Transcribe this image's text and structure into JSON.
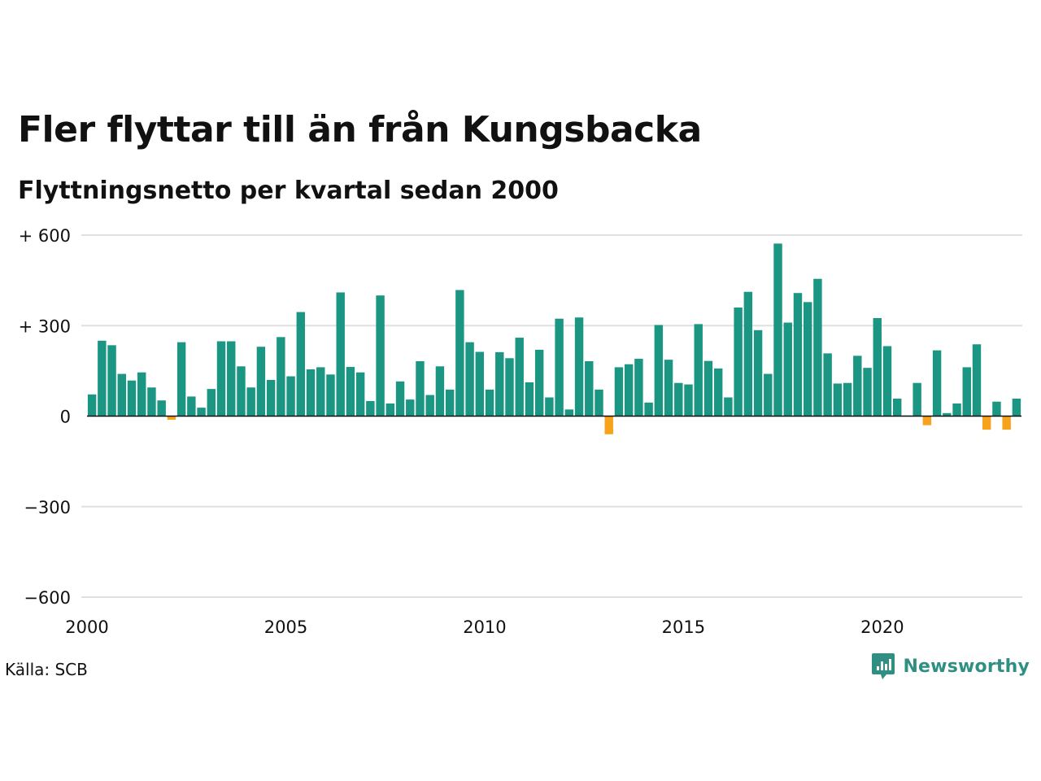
{
  "header": {
    "title": "Fler flyttar till än från Kungsbacka",
    "subtitle": "Flyttningsnetto per kvartal sedan 2000"
  },
  "footer": {
    "source": "Källa: SCB",
    "brand": "Newsworthy"
  },
  "colors": {
    "positive": "#1a9683",
    "negative": "#f7a21b",
    "grid": "#e0e0e0",
    "zero_line": "#111111",
    "brand": "#2f8f83"
  },
  "icons": {
    "brand_logo": "newsworthy-logo-icon"
  },
  "chart_data": {
    "type": "bar",
    "title": "Fler flyttar till än från Kungsbacka",
    "subtitle": "Flyttningsnetto per kvartal sedan 2000",
    "xlabel": "",
    "ylabel": "",
    "ylim": [
      -600,
      600
    ],
    "y_ticks": [
      {
        "value": 600,
        "label": "+ 600"
      },
      {
        "value": 300,
        "label": "+ 300"
      },
      {
        "value": 0,
        "label": "0"
      },
      {
        "value": -300,
        "label": "−300"
      },
      {
        "value": -600,
        "label": "−600"
      }
    ],
    "x_ticks": [
      {
        "value": 2000,
        "label": "2000"
      },
      {
        "value": 2005,
        "label": "2005"
      },
      {
        "value": 2010,
        "label": "2010"
      },
      {
        "value": 2015,
        "label": "2015"
      },
      {
        "value": 2020,
        "label": "2020"
      }
    ],
    "x_range": [
      2000,
      2023.5
    ],
    "grid": true,
    "legend": "none",
    "series": [
      {
        "categories": [
          "2000K1",
          "2000K2",
          "2000K3",
          "2000K4",
          "2001K1",
          "2001K2",
          "2001K3",
          "2001K4",
          "2002K1",
          "2002K2",
          "2002K3",
          "2002K4",
          "2003K1",
          "2003K2",
          "2003K3",
          "2003K4",
          "2004K1",
          "2004K2",
          "2004K3",
          "2004K4",
          "2005K1",
          "2005K2",
          "2005K3",
          "2005K4",
          "2006K1",
          "2006K2",
          "2006K3",
          "2006K4",
          "2007K1",
          "2007K2",
          "2007K3",
          "2007K4",
          "2008K1",
          "2008K2",
          "2008K3",
          "2008K4",
          "2009K1",
          "2009K2",
          "2009K3",
          "2009K4",
          "2010K1",
          "2010K2",
          "2010K3",
          "2010K4",
          "2011K1",
          "2011K2",
          "2011K3",
          "2011K4",
          "2012K1",
          "2012K2",
          "2012K3",
          "2012K4",
          "2013K1",
          "2013K2",
          "2013K3",
          "2013K4",
          "2014K1",
          "2014K2",
          "2014K3",
          "2014K4",
          "2015K1",
          "2015K2",
          "2015K3",
          "2015K4",
          "2016K1",
          "2016K2",
          "2016K3",
          "2016K4",
          "2017K1",
          "2017K2",
          "2017K3",
          "2017K4",
          "2018K1",
          "2018K2",
          "2018K3",
          "2018K4",
          "2019K1",
          "2019K2",
          "2019K3",
          "2019K4",
          "2020K1",
          "2020K2",
          "2020K3",
          "2020K4",
          "2021K1",
          "2021K2",
          "2021K3",
          "2021K4",
          "2022K1",
          "2022K2",
          "2022K3",
          "2022K4",
          "2023K1",
          "2023K2"
        ],
        "values": [
          72,
          250,
          235,
          140,
          118,
          145,
          95,
          52,
          -12,
          245,
          65,
          28,
          90,
          248,
          248,
          165,
          95,
          230,
          120,
          262,
          132,
          345,
          155,
          162,
          138,
          410,
          163,
          145,
          50,
          400,
          42,
          115,
          55,
          182,
          70,
          165,
          88,
          418,
          245,
          213,
          88,
          212,
          192,
          260,
          112,
          220,
          62,
          323,
          22,
          327,
          182,
          88,
          -60,
          162,
          172,
          190,
          45,
          302,
          187,
          110,
          105,
          305,
          183,
          158,
          62,
          360,
          412,
          285,
          140,
          572,
          310,
          408,
          378,
          455,
          208,
          108,
          110,
          200,
          160,
          325,
          232,
          58,
          2,
          110,
          -30,
          218,
          10,
          42,
          162,
          238,
          -45,
          48,
          -45,
          58
        ]
      }
    ]
  }
}
